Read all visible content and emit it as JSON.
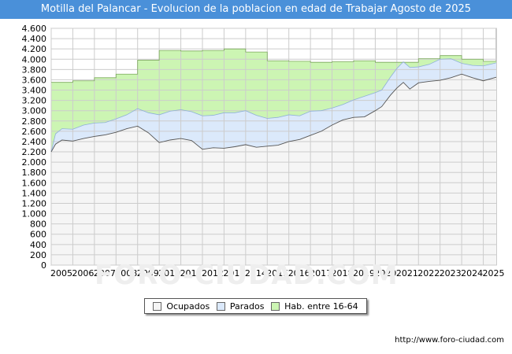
{
  "title": "Motilla del Palancar - Evolucion de la poblacion en edad de Trabajar Agosto de 2025",
  "source": "http://www.foro-ciudad.com",
  "watermark": "FORO-CIUDAD.COM",
  "colors": {
    "header": "#4a90d9",
    "habitantes_fill": "#ccf5b3",
    "parados_fill": "#dbe9fb",
    "ocupados_fill": "#f5f5f5",
    "line": "#555555",
    "grid": "#cccccc"
  },
  "legend": [
    {
      "label": "Ocupados",
      "color": "#f5f5f5"
    },
    {
      "label": "Parados",
      "color": "#dbe9fb"
    },
    {
      "label": "Hab. entre 16-64",
      "color": "#ccf5b3"
    }
  ],
  "chart_data": {
    "type": "area",
    "title": "Motilla del Palancar - Evolucion de la poblacion en edad de Trabajar Agosto de 2025",
    "xlim": [
      2005,
      2025.6
    ],
    "ylim": [
      0,
      4600
    ],
    "x_ticks": [
      "2005",
      "2006",
      "2007",
      "2008",
      "2009",
      "2010",
      "2011",
      "2012",
      "2013",
      "2014",
      "2015",
      "2016",
      "2017",
      "2018",
      "2019",
      "2020",
      "2021",
      "2022",
      "2023",
      "2024",
      "2025"
    ],
    "y_ticks": [
      0,
      200,
      400,
      600,
      800,
      1000,
      1200,
      1400,
      1600,
      1800,
      2000,
      2200,
      2400,
      2600,
      2800,
      3000,
      3200,
      3400,
      3600,
      3800,
      4000,
      4200,
      4400,
      4600
    ],
    "y_tick_labels": [
      "0",
      "200",
      "400",
      "600",
      "800",
      "1.000",
      "1.200",
      "1.400",
      "1.600",
      "1.800",
      "2.000",
      "2.200",
      "2.400",
      "2.600",
      "2.800",
      "3.000",
      "3.200",
      "3.400",
      "3.600",
      "3.800",
      "4.000",
      "4.200",
      "4.400",
      "4.600"
    ],
    "grid": true,
    "legend_position": "bottom",
    "series": [
      {
        "name": "Hab. entre 16-64",
        "step": true,
        "points": [
          [
            2005,
            3550
          ],
          [
            2006,
            3580
          ],
          [
            2007,
            3640
          ],
          [
            2008,
            3710
          ],
          [
            2009,
            3980
          ],
          [
            2010,
            4170
          ],
          [
            2011,
            4160
          ],
          [
            2012,
            4170
          ],
          [
            2013,
            4200
          ],
          [
            2014,
            4140
          ],
          [
            2015,
            3970
          ],
          [
            2016,
            3960
          ],
          [
            2017,
            3940
          ],
          [
            2018,
            3950
          ],
          [
            2019,
            3970
          ],
          [
            2020,
            3940
          ],
          [
            2021,
            3940
          ],
          [
            2022,
            4010
          ],
          [
            2023,
            4070
          ],
          [
            2024,
            4000
          ],
          [
            2025,
            3960
          ]
        ]
      },
      {
        "name": "Parados",
        "points": [
          [
            2005,
            2200
          ],
          [
            2005.2,
            2550
          ],
          [
            2005.5,
            2650
          ],
          [
            2006,
            2640
          ],
          [
            2006.5,
            2720
          ],
          [
            2007,
            2760
          ],
          [
            2007.5,
            2770
          ],
          [
            2008,
            2840
          ],
          [
            2008.5,
            2920
          ],
          [
            2009,
            3040
          ],
          [
            2009.5,
            2960
          ],
          [
            2010,
            2920
          ],
          [
            2010.5,
            2990
          ],
          [
            2011,
            3020
          ],
          [
            2011.5,
            2980
          ],
          [
            2012,
            2900
          ],
          [
            2012.5,
            2910
          ],
          [
            2013,
            2960
          ],
          [
            2013.5,
            2960
          ],
          [
            2014,
            3000
          ],
          [
            2014.5,
            2910
          ],
          [
            2015,
            2850
          ],
          [
            2015.5,
            2870
          ],
          [
            2016,
            2920
          ],
          [
            2016.5,
            2900
          ],
          [
            2017,
            2990
          ],
          [
            2017.5,
            3000
          ],
          [
            2018,
            3050
          ],
          [
            2018.5,
            3120
          ],
          [
            2019,
            3210
          ],
          [
            2019.5,
            3280
          ],
          [
            2020,
            3350
          ],
          [
            2020.3,
            3400
          ],
          [
            2020.7,
            3650
          ],
          [
            2021,
            3820
          ],
          [
            2021.3,
            3950
          ],
          [
            2021.6,
            3840
          ],
          [
            2022,
            3850
          ],
          [
            2022.5,
            3900
          ],
          [
            2023,
            4000
          ],
          [
            2023.5,
            4010
          ],
          [
            2024,
            3920
          ],
          [
            2024.5,
            3880
          ],
          [
            2025,
            3870
          ],
          [
            2025.6,
            3930
          ]
        ]
      },
      {
        "name": "Ocupados",
        "points": [
          [
            2005,
            2200
          ],
          [
            2005.2,
            2350
          ],
          [
            2005.5,
            2430
          ],
          [
            2006,
            2410
          ],
          [
            2006.5,
            2460
          ],
          [
            2007,
            2500
          ],
          [
            2007.5,
            2530
          ],
          [
            2008,
            2580
          ],
          [
            2008.5,
            2650
          ],
          [
            2009,
            2700
          ],
          [
            2009.5,
            2570
          ],
          [
            2010,
            2380
          ],
          [
            2010.5,
            2430
          ],
          [
            2011,
            2460
          ],
          [
            2011.5,
            2420
          ],
          [
            2012,
            2250
          ],
          [
            2012.5,
            2280
          ],
          [
            2013,
            2270
          ],
          [
            2013.5,
            2300
          ],
          [
            2014,
            2340
          ],
          [
            2014.5,
            2290
          ],
          [
            2015,
            2310
          ],
          [
            2015.5,
            2330
          ],
          [
            2016,
            2400
          ],
          [
            2016.5,
            2440
          ],
          [
            2017,
            2520
          ],
          [
            2017.5,
            2600
          ],
          [
            2018,
            2720
          ],
          [
            2018.5,
            2820
          ],
          [
            2019,
            2870
          ],
          [
            2019.5,
            2880
          ],
          [
            2020,
            3000
          ],
          [
            2020.3,
            3080
          ],
          [
            2020.7,
            3300
          ],
          [
            2021,
            3440
          ],
          [
            2021.3,
            3550
          ],
          [
            2021.6,
            3420
          ],
          [
            2022,
            3540
          ],
          [
            2022.5,
            3570
          ],
          [
            2023,
            3590
          ],
          [
            2023.5,
            3640
          ],
          [
            2024,
            3710
          ],
          [
            2024.5,
            3640
          ],
          [
            2025,
            3580
          ],
          [
            2025.6,
            3650
          ]
        ]
      }
    ]
  }
}
